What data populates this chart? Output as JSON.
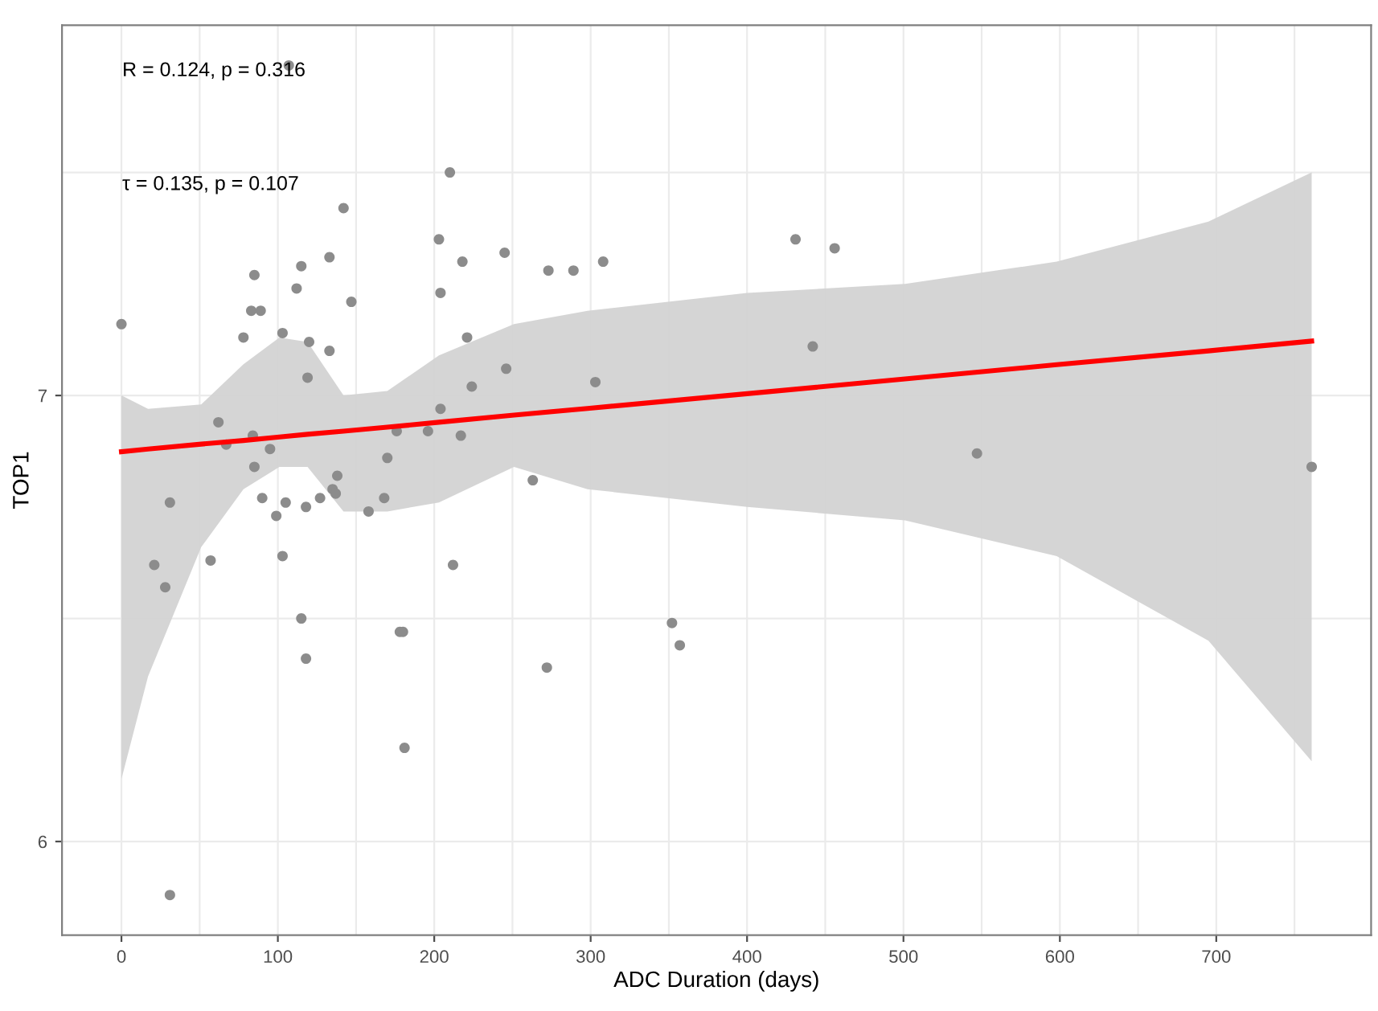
{
  "chart_data": {
    "type": "scatter",
    "xlabel": "ADC Duration (days)",
    "ylabel": "TOP1",
    "annotations": [
      "R = 0.124, p = 0.316",
      "τ = 0.135, p = 0.107"
    ],
    "xlim": [
      -38,
      799
    ],
    "ylim": [
      5.79,
      7.83
    ],
    "xticks": [
      0,
      100,
      200,
      300,
      400,
      500,
      600,
      700
    ],
    "yticks": [
      6,
      7
    ],
    "grid": true,
    "series": [
      {
        "marker": "circle",
        "color": "#8c8c8c",
        "x": [
          0,
          107,
          210,
          142,
          203,
          133,
          115,
          85,
          112,
          218,
          245,
          273,
          289,
          308,
          431,
          456,
          204,
          147,
          83,
          89,
          78,
          103,
          120,
          133,
          221,
          246,
          119,
          224,
          303,
          442,
          62,
          204,
          196,
          217,
          84,
          67,
          95,
          85,
          138,
          170,
          176,
          135,
          137,
          168,
          90,
          31,
          21,
          28,
          57,
          99,
          105,
          118,
          127,
          158,
          103,
          212,
          115,
          178,
          180,
          118,
          181,
          31,
          263,
          547,
          761,
          352,
          357,
          272
        ],
        "values": [
          7.16,
          7.74,
          7.5,
          7.42,
          7.35,
          7.31,
          7.29,
          7.27,
          7.24,
          7.3,
          7.32,
          7.28,
          7.28,
          7.3,
          7.35,
          7.33,
          7.23,
          7.21,
          7.19,
          7.19,
          7.13,
          7.14,
          7.12,
          7.1,
          7.13,
          7.06,
          7.04,
          7.02,
          7.03,
          7.11,
          6.94,
          6.97,
          6.92,
          6.91,
          6.91,
          6.89,
          6.88,
          6.84,
          6.82,
          6.86,
          6.92,
          6.79,
          6.78,
          6.77,
          6.77,
          6.76,
          6.62,
          6.57,
          6.63,
          6.73,
          6.76,
          6.75,
          6.77,
          6.74,
          6.64,
          6.62,
          6.5,
          6.47,
          6.47,
          6.41,
          6.21,
          5.88,
          6.81,
          6.87,
          6.84,
          6.49,
          6.44,
          6.39
        ]
      },
      {
        "type": "line",
        "color": "#ff0000",
        "line_style": "solid",
        "x": [
          0,
          17,
          51,
          78,
          101,
          119,
          142,
          170,
          203,
          251,
          298,
          400,
          501,
          598,
          695,
          761
        ],
        "values": [
          6.874,
          6.88,
          6.891,
          6.899,
          6.907,
          6.913,
          6.92,
          6.929,
          6.94,
          6.956,
          6.971,
          7.004,
          7.037,
          7.069,
          7.1,
          7.122
        ],
        "upper": [
          7.0,
          6.97,
          6.98,
          7.07,
          7.13,
          7.12,
          7.0,
          7.01,
          7.09,
          7.16,
          7.19,
          7.23,
          7.25,
          7.3,
          7.39,
          7.5
        ],
        "lower": [
          6.14,
          6.37,
          6.66,
          6.79,
          6.84,
          6.84,
          6.74,
          6.74,
          6.76,
          6.84,
          6.79,
          6.75,
          6.72,
          6.64,
          6.45,
          6.18
        ]
      }
    ]
  }
}
